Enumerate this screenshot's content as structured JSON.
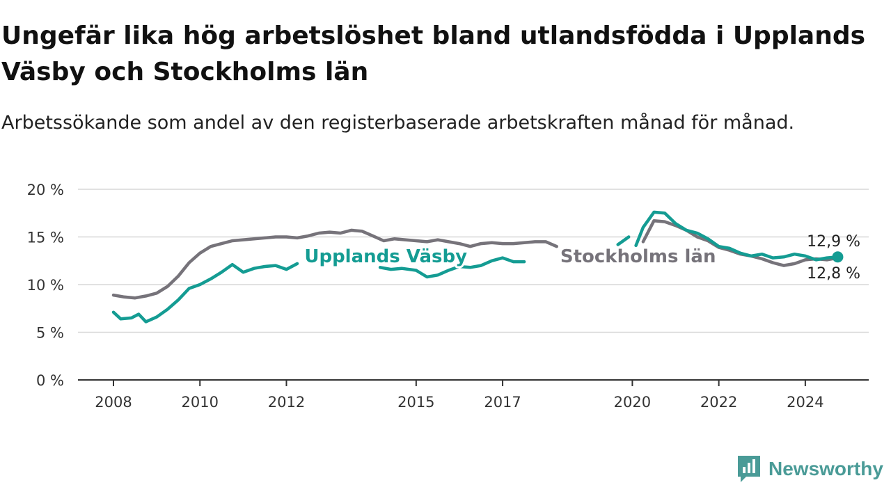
{
  "title": "Ungefär lika hög arbetslöshet bland utlandsfödda i Upplands Väsby och Stockholms län",
  "subtitle": "Arbetssökande som andel av den registerbaserade arbetskraften månad för månad.",
  "brand": {
    "name": "Newsworthy",
    "icon": "newsworthy-logo-icon",
    "color": "#4a9b97"
  },
  "chart_data": {
    "type": "line",
    "title": "Ungefär lika hög arbetslöshet bland utlandsfödda i Upplands Väsby och Stockholms län",
    "subtitle": "Arbetssökande som andel av den registerbaserade arbetskraften månad för månad.",
    "xlabel": "",
    "ylabel": "",
    "x_ticks": [
      {
        "label": "2008",
        "x": "2008-01"
      },
      {
        "label": "2010",
        "x": "2010-01"
      },
      {
        "label": "2012",
        "x": "2012-01"
      },
      {
        "label": "2015",
        "x": "2015-01"
      },
      {
        "label": "2017",
        "x": "2017-01"
      },
      {
        "label": "2020",
        "x": "2020-01"
      },
      {
        "label": "2022",
        "x": "2022-01"
      },
      {
        "label": "2024",
        "x": "2024-01"
      }
    ],
    "xlim": [
      "2008-01",
      "2025-01"
    ],
    "y_ticks": [
      {
        "label": "0 %",
        "value": 0
      },
      {
        "label": "5 %",
        "value": 5
      },
      {
        "label": "10 %",
        "value": 10
      },
      {
        "label": "15 %",
        "value": 15
      },
      {
        "label": "20 %",
        "value": 20
      }
    ],
    "ylim": [
      0,
      20
    ],
    "grid": true,
    "legend": "inline labels on the lines",
    "series": [
      {
        "name": "Stockholms län",
        "color": "#76737a",
        "end_label": "12,8 %",
        "points": [
          [
            "2008-01",
            8.9
          ],
          [
            "2008-04",
            8.7
          ],
          [
            "2008-07",
            8.6
          ],
          [
            "2008-10",
            8.8
          ],
          [
            "2009-01",
            9.1
          ],
          [
            "2009-04",
            9.8
          ],
          [
            "2009-07",
            10.9
          ],
          [
            "2009-10",
            12.3
          ],
          [
            "2010-01",
            13.3
          ],
          [
            "2010-04",
            14.0
          ],
          [
            "2010-07",
            14.3
          ],
          [
            "2010-10",
            14.6
          ],
          [
            "2011-01",
            14.7
          ],
          [
            "2011-04",
            14.8
          ],
          [
            "2011-07",
            14.9
          ],
          [
            "2011-10",
            15.0
          ],
          [
            "2012-01",
            15.0
          ],
          [
            "2012-04",
            14.9
          ],
          [
            "2012-07",
            15.1
          ],
          [
            "2012-10",
            15.4
          ],
          [
            "2013-01",
            15.5
          ],
          [
            "2013-04",
            15.4
          ],
          [
            "2013-07",
            15.7
          ],
          [
            "2013-10",
            15.6
          ],
          [
            "2014-01",
            15.1
          ],
          [
            "2014-04",
            14.6
          ],
          [
            "2014-07",
            14.8
          ],
          [
            "2014-10",
            14.7
          ],
          [
            "2015-01",
            14.6
          ],
          [
            "2015-04",
            14.5
          ],
          [
            "2015-07",
            14.7
          ],
          [
            "2015-10",
            14.5
          ],
          [
            "2016-01",
            14.3
          ],
          [
            "2016-04",
            14.0
          ],
          [
            "2016-07",
            14.3
          ],
          [
            "2016-10",
            14.4
          ],
          [
            "2017-01",
            14.3
          ],
          [
            "2017-04",
            14.3
          ],
          [
            "2017-07",
            14.4
          ],
          [
            "2017-10",
            14.5
          ],
          [
            "2018-01",
            14.5
          ],
          [
            "2018-04",
            14.0
          ],
          null,
          [
            "2020-04",
            14.5
          ],
          [
            "2020-07",
            16.7
          ],
          [
            "2020-10",
            16.6
          ],
          [
            "2021-01",
            16.2
          ],
          [
            "2021-04",
            15.7
          ],
          [
            "2021-07",
            15.0
          ],
          [
            "2021-10",
            14.6
          ],
          [
            "2022-01",
            13.9
          ],
          [
            "2022-04",
            13.6
          ],
          [
            "2022-07",
            13.2
          ],
          [
            "2022-10",
            13.0
          ],
          [
            "2023-01",
            12.7
          ],
          [
            "2023-04",
            12.3
          ],
          [
            "2023-07",
            12.0
          ],
          [
            "2023-10",
            12.2
          ],
          [
            "2024-01",
            12.6
          ],
          [
            "2024-04",
            12.7
          ],
          [
            "2024-07",
            12.6
          ],
          [
            "2024-10",
            12.8
          ]
        ]
      },
      {
        "name": "Upplands Väsby",
        "color": "#149c93",
        "end_label": "12,9 %",
        "points": [
          [
            "2008-01",
            7.1
          ],
          [
            "2008-03",
            6.4
          ],
          [
            "2008-06",
            6.5
          ],
          [
            "2008-08",
            6.9
          ],
          [
            "2008-10",
            6.1
          ],
          [
            "2009-01",
            6.6
          ],
          [
            "2009-04",
            7.4
          ],
          [
            "2009-07",
            8.4
          ],
          [
            "2009-10",
            9.6
          ],
          [
            "2010-01",
            10.0
          ],
          [
            "2010-04",
            10.6
          ],
          [
            "2010-07",
            11.3
          ],
          [
            "2010-10",
            12.1
          ],
          [
            "2011-01",
            11.3
          ],
          [
            "2011-04",
            11.7
          ],
          [
            "2011-07",
            11.9
          ],
          [
            "2011-10",
            12.0
          ],
          [
            "2012-01",
            11.6
          ],
          [
            "2012-04",
            12.2
          ],
          null,
          [
            "2014-03",
            11.8
          ],
          [
            "2014-06",
            11.6
          ],
          [
            "2014-09",
            11.7
          ],
          [
            "2015-01",
            11.5
          ],
          [
            "2015-04",
            10.8
          ],
          [
            "2015-07",
            11.0
          ],
          [
            "2015-10",
            11.5
          ],
          [
            "2016-01",
            11.9
          ],
          [
            "2016-04",
            11.8
          ],
          [
            "2016-07",
            12.0
          ],
          [
            "2016-10",
            12.5
          ],
          [
            "2017-01",
            12.8
          ],
          [
            "2017-04",
            12.4
          ],
          [
            "2017-07",
            12.4
          ],
          null,
          [
            "2019-09",
            14.2
          ],
          [
            "2019-12",
            15.0
          ],
          null,
          [
            "2020-02",
            14.1
          ],
          [
            "2020-04",
            16.0
          ],
          [
            "2020-07",
            17.6
          ],
          [
            "2020-10",
            17.5
          ],
          [
            "2021-01",
            16.4
          ],
          [
            "2021-04",
            15.7
          ],
          [
            "2021-07",
            15.4
          ],
          [
            "2021-10",
            14.8
          ],
          [
            "2022-01",
            14.0
          ],
          [
            "2022-04",
            13.8
          ],
          [
            "2022-07",
            13.3
          ],
          [
            "2022-10",
            13.0
          ],
          [
            "2023-01",
            13.2
          ],
          [
            "2023-04",
            12.8
          ],
          [
            "2023-07",
            12.9
          ],
          [
            "2023-10",
            13.2
          ],
          [
            "2024-01",
            13.0
          ],
          [
            "2024-04",
            12.6
          ],
          [
            "2024-07",
            12.8
          ],
          [
            "2024-10",
            12.9
          ]
        ]
      }
    ],
    "inline_labels": [
      {
        "text": "Upplands Väsby",
        "series": "Upplands Väsby",
        "at": [
          "2012-06",
          13.0
        ]
      },
      {
        "text": "Stockholms län",
        "series": "Stockholms län",
        "at": [
          "2018-05",
          13.0
        ]
      }
    ]
  }
}
